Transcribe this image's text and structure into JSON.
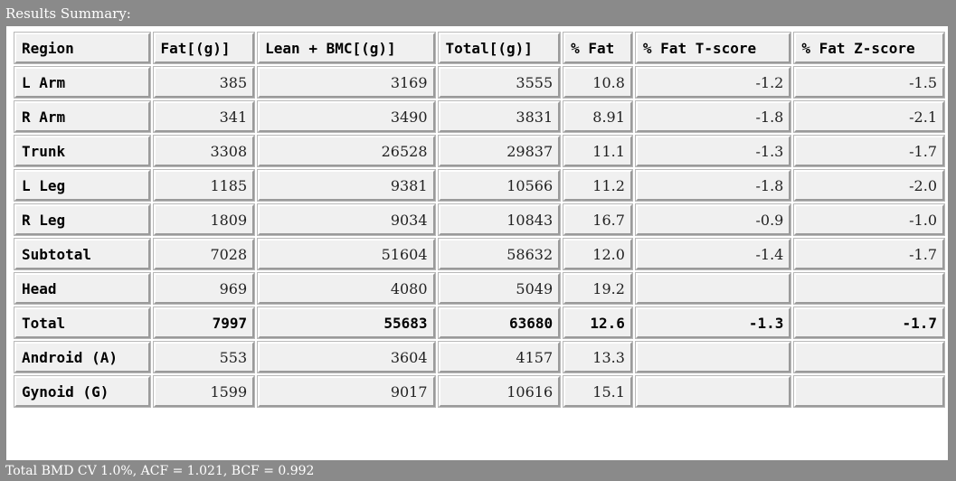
{
  "title": "Results Summary:",
  "columns": [
    "Region",
    "Fat[(g)]",
    "Lean + BMC[(g)]",
    "Total[(g)]",
    "% Fat",
    "% Fat T-score",
    "% Fat Z-score"
  ],
  "rows": [
    {
      "region": "L Arm",
      "fat": "385",
      "lean_bmc": "3169",
      "total": "3555",
      "pct_fat": "10.8",
      "t_score": "-1.2",
      "z_score": "-1.5"
    },
    {
      "region": "R Arm",
      "fat": "341",
      "lean_bmc": "3490",
      "total": "3831",
      "pct_fat": "8.91",
      "t_score": "-1.8",
      "z_score": "-2.1"
    },
    {
      "region": "Trunk",
      "fat": "3308",
      "lean_bmc": "26528",
      "total": "29837",
      "pct_fat": "11.1",
      "t_score": "-1.3",
      "z_score": "-1.7"
    },
    {
      "region": "L Leg",
      "fat": "1185",
      "lean_bmc": "9381",
      "total": "10566",
      "pct_fat": "11.2",
      "t_score": "-1.8",
      "z_score": "-2.0"
    },
    {
      "region": "R Leg",
      "fat": "1809",
      "lean_bmc": "9034",
      "total": "10843",
      "pct_fat": "16.7",
      "t_score": "-0.9",
      "z_score": "-1.0"
    },
    {
      "region": "Subtotal",
      "fat": "7028",
      "lean_bmc": "51604",
      "total": "58632",
      "pct_fat": "12.0",
      "t_score": "-1.4",
      "z_score": "-1.7"
    },
    {
      "region": "Head",
      "fat": "969",
      "lean_bmc": "4080",
      "total": "5049",
      "pct_fat": "19.2",
      "t_score": "",
      "z_score": ""
    },
    {
      "region": "Total",
      "fat": "7997",
      "lean_bmc": "55683",
      "total": "63680",
      "pct_fat": "12.6",
      "t_score": "-1.3",
      "z_score": "-1.7"
    },
    {
      "region": "Android (A)",
      "fat": "553",
      "lean_bmc": "3604",
      "total": "4157",
      "pct_fat": "13.3",
      "t_score": "",
      "z_score": ""
    },
    {
      "region": "Gynoid (G)",
      "fat": "1599",
      "lean_bmc": "9017",
      "total": "10616",
      "pct_fat": "15.1",
      "t_score": "",
      "z_score": ""
    }
  ],
  "footer": "Total BMD CV 1.0%, ACF = 1.021, BCF = 0.992"
}
